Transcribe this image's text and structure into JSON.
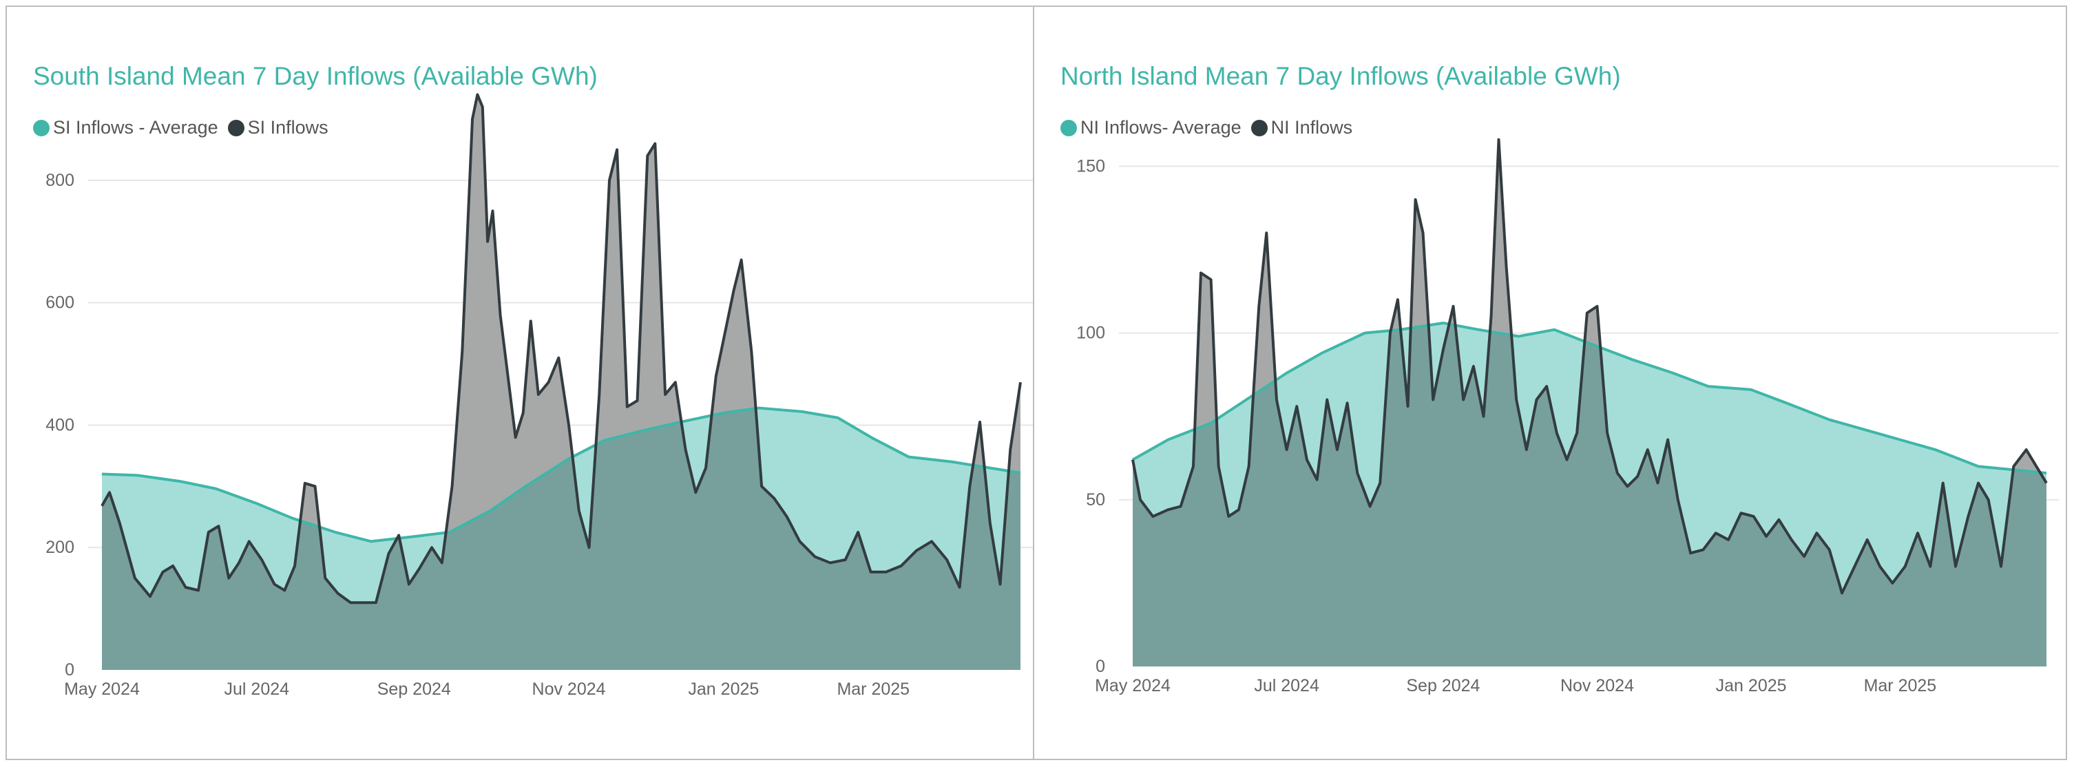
{
  "colors": {
    "average": "#3fb6a8",
    "average_fill": "#a5ded8",
    "inflows_line": "#333c40",
    "inflows_fill": "#a7a9a9",
    "overlap_fill": "#77a09c",
    "grid": "#e6e6e6"
  },
  "chart_data": [
    {
      "type": "area",
      "title": "South Island Mean 7 Day Inflows (Available GWh)",
      "xlabel": "",
      "ylabel": "",
      "x_ticks": [
        "May 2024",
        "Jul 2024",
        "Sep 2024",
        "Nov 2024",
        "Jan 2025",
        "Mar 2025"
      ],
      "x_range": [
        "2024-05-01",
        "2025-04-28"
      ],
      "y_ticks": [
        0,
        200,
        400,
        600,
        800
      ],
      "ylim": [
        0,
        900
      ],
      "grid": true,
      "legend_position": "top-left",
      "series": [
        {
          "name": "SI Inflows - Average",
          "color": "#3fb6a8",
          "points": [
            [
              "2024-05-01",
              320
            ],
            [
              "2024-05-15",
              318
            ],
            [
              "2024-06-01",
              308
            ],
            [
              "2024-06-15",
              296
            ],
            [
              "2024-07-01",
              272
            ],
            [
              "2024-07-15",
              248
            ],
            [
              "2024-08-01",
              225
            ],
            [
              "2024-08-15",
              210
            ],
            [
              "2024-09-01",
              218
            ],
            [
              "2024-09-15",
              225
            ],
            [
              "2024-10-01",
              260
            ],
            [
              "2024-10-15",
              300
            ],
            [
              "2024-11-01",
              345
            ],
            [
              "2024-11-15",
              375
            ],
            [
              "2024-12-01",
              392
            ],
            [
              "2024-12-15",
              405
            ],
            [
              "2025-01-01",
              420
            ],
            [
              "2025-01-15",
              428
            ],
            [
              "2025-02-01",
              422
            ],
            [
              "2025-02-15",
              412
            ],
            [
              "2025-03-01",
              378
            ],
            [
              "2025-03-15",
              348
            ],
            [
              "2025-04-01",
              340
            ],
            [
              "2025-04-28",
              322
            ]
          ]
        },
        {
          "name": "SI Inflows",
          "color": "#333c40",
          "points": [
            [
              "2024-05-01",
              268
            ],
            [
              "2024-05-04",
              290
            ],
            [
              "2024-05-08",
              240
            ],
            [
              "2024-05-14",
              150
            ],
            [
              "2024-05-20",
              120
            ],
            [
              "2024-05-25",
              160
            ],
            [
              "2024-05-29",
              170
            ],
            [
              "2024-06-03",
              135
            ],
            [
              "2024-06-08",
              130
            ],
            [
              "2024-06-12",
              225
            ],
            [
              "2024-06-16",
              235
            ],
            [
              "2024-06-20",
              150
            ],
            [
              "2024-06-24",
              175
            ],
            [
              "2024-06-28",
              210
            ],
            [
              "2024-07-03",
              180
            ],
            [
              "2024-07-08",
              140
            ],
            [
              "2024-07-12",
              130
            ],
            [
              "2024-07-16",
              170
            ],
            [
              "2024-07-20",
              305
            ],
            [
              "2024-07-24",
              300
            ],
            [
              "2024-07-28",
              150
            ],
            [
              "2024-08-02",
              125
            ],
            [
              "2024-08-07",
              110
            ],
            [
              "2024-08-12",
              110
            ],
            [
              "2024-08-17",
              110
            ],
            [
              "2024-08-22",
              190
            ],
            [
              "2024-08-26",
              220
            ],
            [
              "2024-08-30",
              140
            ],
            [
              "2024-09-03",
              165
            ],
            [
              "2024-09-08",
              200
            ],
            [
              "2024-09-12",
              175
            ],
            [
              "2024-09-16",
              300
            ],
            [
              "2024-09-20",
              520
            ],
            [
              "2024-09-24",
              900
            ],
            [
              "2024-09-26",
              940
            ],
            [
              "2024-09-28",
              920
            ],
            [
              "2024-09-30",
              700
            ],
            [
              "2024-10-02",
              750
            ],
            [
              "2024-10-05",
              580
            ],
            [
              "2024-10-08",
              480
            ],
            [
              "2024-10-11",
              380
            ],
            [
              "2024-10-14",
              420
            ],
            [
              "2024-10-17",
              570
            ],
            [
              "2024-10-20",
              450
            ],
            [
              "2024-10-24",
              470
            ],
            [
              "2024-10-28",
              510
            ],
            [
              "2024-11-01",
              400
            ],
            [
              "2024-11-05",
              260
            ],
            [
              "2024-11-09",
              200
            ],
            [
              "2024-11-13",
              450
            ],
            [
              "2024-11-17",
              800
            ],
            [
              "2024-11-20",
              850
            ],
            [
              "2024-11-24",
              430
            ],
            [
              "2024-11-28",
              440
            ],
            [
              "2024-12-02",
              840
            ],
            [
              "2024-12-05",
              860
            ],
            [
              "2024-12-09",
              450
            ],
            [
              "2024-12-13",
              470
            ],
            [
              "2024-12-17",
              360
            ],
            [
              "2024-12-21",
              290
            ],
            [
              "2024-12-25",
              330
            ],
            [
              "2024-12-29",
              480
            ],
            [
              "2025-01-02",
              560
            ],
            [
              "2025-01-05",
              620
            ],
            [
              "2025-01-08",
              670
            ],
            [
              "2025-01-12",
              520
            ],
            [
              "2025-01-16",
              300
            ],
            [
              "2025-01-21",
              280
            ],
            [
              "2025-01-26",
              250
            ],
            [
              "2025-01-31",
              210
            ],
            [
              "2025-02-06",
              185
            ],
            [
              "2025-02-12",
              175
            ],
            [
              "2025-02-18",
              180
            ],
            [
              "2025-02-23",
              225
            ],
            [
              "2025-02-28",
              160
            ],
            [
              "2025-03-06",
              160
            ],
            [
              "2025-03-12",
              170
            ],
            [
              "2025-03-18",
              195
            ],
            [
              "2025-03-24",
              210
            ],
            [
              "2025-03-30",
              180
            ],
            [
              "2025-04-04",
              135
            ],
            [
              "2025-04-08",
              300
            ],
            [
              "2025-04-12",
              405
            ],
            [
              "2025-04-16",
              240
            ],
            [
              "2025-04-20",
              140
            ],
            [
              "2025-04-24",
              360
            ],
            [
              "2025-04-28",
              470
            ]
          ]
        }
      ]
    },
    {
      "type": "area",
      "title": "North Island Mean 7 Day Inflows (Available GWh)",
      "xlabel": "",
      "ylabel": "",
      "x_ticks": [
        "May 2024",
        "Jul 2024",
        "Sep 2024",
        "Nov 2024",
        "Jan 2025",
        "Mar 2025"
      ],
      "x_range": [
        "2024-05-01",
        "2025-04-28"
      ],
      "y_ticks": [
        0,
        50,
        100,
        150
      ],
      "ylim": [
        0,
        160
      ],
      "grid": true,
      "legend_position": "top-left",
      "series": [
        {
          "name": "NI Inflows- Average",
          "color": "#3fb6a8",
          "points": [
            [
              "2024-05-01",
              62
            ],
            [
              "2024-05-15",
              68
            ],
            [
              "2024-06-01",
              73
            ],
            [
              "2024-06-15",
              80
            ],
            [
              "2024-07-01",
              88
            ],
            [
              "2024-07-15",
              94
            ],
            [
              "2024-08-01",
              100
            ],
            [
              "2024-08-15",
              101
            ],
            [
              "2024-09-01",
              103
            ],
            [
              "2024-09-15",
              101
            ],
            [
              "2024-10-01",
              99
            ],
            [
              "2024-10-15",
              101
            ],
            [
              "2024-11-01",
              96
            ],
            [
              "2024-11-15",
              92
            ],
            [
              "2024-12-01",
              88
            ],
            [
              "2024-12-15",
              84
            ],
            [
              "2025-01-01",
              83
            ],
            [
              "2025-01-15",
              79
            ],
            [
              "2025-02-01",
              74
            ],
            [
              "2025-02-15",
              71
            ],
            [
              "2025-03-01",
              68
            ],
            [
              "2025-03-15",
              65
            ],
            [
              "2025-04-01",
              60
            ],
            [
              "2025-04-28",
              58
            ]
          ]
        },
        {
          "name": "NI Inflows",
          "color": "#333c40",
          "points": [
            [
              "2024-05-01",
              62
            ],
            [
              "2024-05-04",
              50
            ],
            [
              "2024-05-09",
              45
            ],
            [
              "2024-05-15",
              47
            ],
            [
              "2024-05-20",
              48
            ],
            [
              "2024-05-25",
              60
            ],
            [
              "2024-05-28",
              118
            ],
            [
              "2024-06-01",
              116
            ],
            [
              "2024-06-04",
              60
            ],
            [
              "2024-06-08",
              45
            ],
            [
              "2024-06-12",
              47
            ],
            [
              "2024-06-16",
              60
            ],
            [
              "2024-06-20",
              108
            ],
            [
              "2024-06-23",
              130
            ],
            [
              "2024-06-27",
              80
            ],
            [
              "2024-07-01",
              65
            ],
            [
              "2024-07-05",
              78
            ],
            [
              "2024-07-09",
              62
            ],
            [
              "2024-07-13",
              56
            ],
            [
              "2024-07-17",
              80
            ],
            [
              "2024-07-21",
              65
            ],
            [
              "2024-07-25",
              79
            ],
            [
              "2024-07-29",
              58
            ],
            [
              "2024-08-03",
              48
            ],
            [
              "2024-08-07",
              55
            ],
            [
              "2024-08-11",
              100
            ],
            [
              "2024-08-14",
              110
            ],
            [
              "2024-08-18",
              78
            ],
            [
              "2024-08-21",
              140
            ],
            [
              "2024-08-24",
              130
            ],
            [
              "2024-08-28",
              80
            ],
            [
              "2024-09-01",
              95
            ],
            [
              "2024-09-05",
              108
            ],
            [
              "2024-09-09",
              80
            ],
            [
              "2024-09-13",
              90
            ],
            [
              "2024-09-17",
              75
            ],
            [
              "2024-09-20",
              105
            ],
            [
              "2024-09-23",
              158
            ],
            [
              "2024-09-26",
              120
            ],
            [
              "2024-09-30",
              80
            ],
            [
              "2024-10-04",
              65
            ],
            [
              "2024-10-08",
              80
            ],
            [
              "2024-10-12",
              84
            ],
            [
              "2024-10-16",
              70
            ],
            [
              "2024-10-20",
              62
            ],
            [
              "2024-10-24",
              70
            ],
            [
              "2024-10-28",
              106
            ],
            [
              "2024-11-01",
              108
            ],
            [
              "2024-11-05",
              70
            ],
            [
              "2024-11-09",
              58
            ],
            [
              "2024-11-13",
              54
            ],
            [
              "2024-11-17",
              57
            ],
            [
              "2024-11-21",
              65
            ],
            [
              "2024-11-25",
              55
            ],
            [
              "2024-11-29",
              68
            ],
            [
              "2024-12-03",
              50
            ],
            [
              "2024-12-08",
              34
            ],
            [
              "2024-12-13",
              35
            ],
            [
              "2024-12-18",
              40
            ],
            [
              "2024-12-23",
              38
            ],
            [
              "2024-12-28",
              46
            ],
            [
              "2025-01-02",
              45
            ],
            [
              "2025-01-07",
              39
            ],
            [
              "2025-01-12",
              44
            ],
            [
              "2025-01-17",
              38
            ],
            [
              "2025-01-22",
              33
            ],
            [
              "2025-01-27",
              40
            ],
            [
              "2025-02-01",
              35
            ],
            [
              "2025-02-06",
              22
            ],
            [
              "2025-02-11",
              30
            ],
            [
              "2025-02-16",
              38
            ],
            [
              "2025-02-21",
              30
            ],
            [
              "2025-02-26",
              25
            ],
            [
              "2025-03-03",
              30
            ],
            [
              "2025-03-08",
              40
            ],
            [
              "2025-03-13",
              30
            ],
            [
              "2025-03-18",
              55
            ],
            [
              "2025-03-23",
              30
            ],
            [
              "2025-03-28",
              45
            ],
            [
              "2025-04-01",
              55
            ],
            [
              "2025-04-05",
              50
            ],
            [
              "2025-04-10",
              30
            ],
            [
              "2025-04-15",
              60
            ],
            [
              "2025-04-20",
              65
            ],
            [
              "2025-04-28",
              55
            ]
          ]
        }
      ]
    }
  ]
}
